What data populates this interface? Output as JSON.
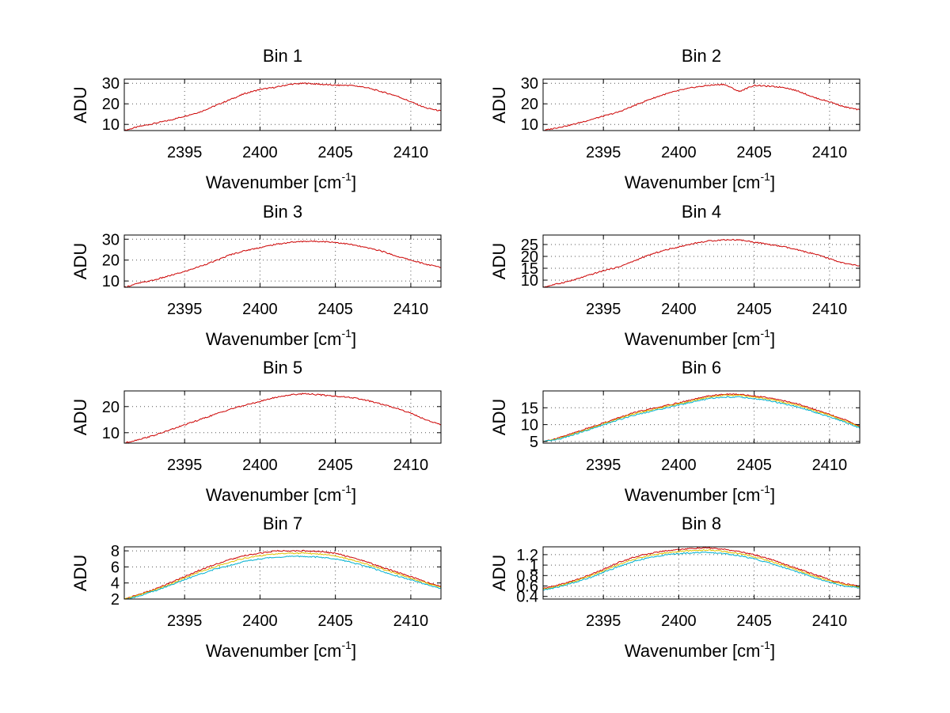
{
  "chart_data": [
    {
      "type": "line",
      "title": "Bin 1",
      "xlabel": "Wavenumber [cm",
      "xlabel_sup": "-1",
      "xlabel_close": "]",
      "ylabel": "ADU",
      "xlim": [
        2391,
        2412
      ],
      "ylim": [
        7,
        32
      ],
      "xticks": [
        2395,
        2400,
        2405,
        2410
      ],
      "yticks": [
        10,
        20,
        30
      ],
      "grid": true,
      "series": [
        {
          "name": "red",
          "color": "#cc0000",
          "x": [
            2391,
            2392,
            2393,
            2394,
            2395,
            2396,
            2397,
            2398,
            2399,
            2400,
            2401,
            2402,
            2403,
            2404,
            2405,
            2406,
            2407,
            2408,
            2409,
            2410,
            2411,
            2412
          ],
          "values": [
            7,
            9,
            10.5,
            12,
            14,
            16,
            19,
            22,
            25,
            27,
            28,
            29.5,
            30,
            29.5,
            29,
            29,
            28,
            26,
            24,
            21,
            18,
            16.5
          ]
        }
      ]
    },
    {
      "type": "line",
      "title": "Bin 2",
      "xlabel": "Wavenumber [cm",
      "xlabel_sup": "-1",
      "xlabel_close": "]",
      "ylabel": "ADU",
      "xlim": [
        2391,
        2412
      ],
      "ylim": [
        7,
        32
      ],
      "xticks": [
        2395,
        2400,
        2405,
        2410
      ],
      "yticks": [
        10,
        20,
        30
      ],
      "grid": true,
      "series": [
        {
          "name": "red",
          "color": "#cc0000",
          "x": [
            2391,
            2392,
            2393,
            2394,
            2395,
            2396,
            2397,
            2398,
            2399,
            2400,
            2401,
            2402,
            2403,
            2404,
            2405,
            2406,
            2407,
            2408,
            2409,
            2410,
            2411,
            2412
          ],
          "values": [
            7,
            8.5,
            10,
            12,
            14,
            16,
            19,
            22,
            24.5,
            26.5,
            28,
            29,
            29.5,
            26,
            29,
            28.5,
            28,
            26,
            23,
            21,
            18.5,
            17
          ]
        }
      ]
    },
    {
      "type": "line",
      "title": "Bin 3",
      "xlabel": "Wavenumber [cm",
      "xlabel_sup": "-1",
      "xlabel_close": "]",
      "ylabel": "ADU",
      "xlim": [
        2391,
        2412
      ],
      "ylim": [
        7,
        32
      ],
      "xticks": [
        2395,
        2400,
        2405,
        2410
      ],
      "yticks": [
        10,
        20,
        30
      ],
      "grid": true,
      "series": [
        {
          "name": "red",
          "color": "#cc0000",
          "x": [
            2391,
            2392,
            2393,
            2394,
            2395,
            2396,
            2397,
            2398,
            2399,
            2400,
            2401,
            2402,
            2403,
            2404,
            2405,
            2406,
            2407,
            2408,
            2409,
            2410,
            2411,
            2412
          ],
          "values": [
            7,
            9,
            10.5,
            12.5,
            14.5,
            17,
            19.5,
            22.5,
            24.5,
            26,
            27.5,
            28.5,
            29,
            29,
            28.5,
            27.5,
            26,
            24.5,
            22,
            20,
            18,
            16.5
          ]
        }
      ]
    },
    {
      "type": "line",
      "title": "Bin 4",
      "xlabel": "Wavenumber [cm",
      "xlabel_sup": "-1",
      "xlabel_close": "]",
      "ylabel": "ADU",
      "xlim": [
        2391,
        2412
      ],
      "ylim": [
        7,
        29
      ],
      "xticks": [
        2395,
        2400,
        2405,
        2410
      ],
      "yticks": [
        10,
        15,
        20,
        25
      ],
      "grid": true,
      "series": [
        {
          "name": "red",
          "color": "#cc0000",
          "x": [
            2391,
            2392,
            2393,
            2394,
            2395,
            2396,
            2397,
            2398,
            2399,
            2400,
            2401,
            2402,
            2403,
            2404,
            2405,
            2406,
            2407,
            2408,
            2409,
            2410,
            2411,
            2412
          ],
          "values": [
            7,
            8.5,
            10,
            12,
            14,
            15.5,
            18,
            20.5,
            22.5,
            24,
            25.5,
            26.5,
            27,
            27,
            26,
            25,
            24,
            22.5,
            21,
            19,
            17,
            16
          ]
        }
      ]
    },
    {
      "type": "line",
      "title": "Bin 5",
      "xlabel": "Wavenumber [cm",
      "xlabel_sup": "-1",
      "xlabel_close": "]",
      "ylabel": "ADU",
      "xlim": [
        2391,
        2412
      ],
      "ylim": [
        6,
        26
      ],
      "xticks": [
        2395,
        2400,
        2405,
        2410
      ],
      "yticks": [
        10,
        20
      ],
      "grid": true,
      "series": [
        {
          "name": "red",
          "color": "#cc0000",
          "x": [
            2391,
            2392,
            2393,
            2394,
            2395,
            2396,
            2397,
            2398,
            2399,
            2400,
            2401,
            2402,
            2403,
            2404,
            2405,
            2406,
            2407,
            2408,
            2409,
            2410,
            2411,
            2412
          ],
          "values": [
            6,
            7.5,
            9,
            11,
            13,
            15,
            17,
            19,
            20.5,
            22,
            23.5,
            24.5,
            25,
            24.5,
            24,
            23.5,
            22.5,
            21,
            19.5,
            17.5,
            15,
            13
          ]
        }
      ]
    },
    {
      "type": "line",
      "title": "Bin 6",
      "xlabel": "Wavenumber [cm",
      "xlabel_sup": "-1",
      "xlabel_close": "]",
      "ylabel": "ADU",
      "xlim": [
        2391,
        2412
      ],
      "ylim": [
        4.5,
        20
      ],
      "xticks": [
        2395,
        2400,
        2405,
        2410
      ],
      "yticks": [
        5,
        10,
        15
      ],
      "grid": true,
      "series": [
        {
          "name": "red",
          "color": "#cc0000",
          "x": [
            2391,
            2392,
            2393,
            2394,
            2395,
            2396,
            2397,
            2398,
            2399,
            2400,
            2401,
            2402,
            2403,
            2404,
            2405,
            2406,
            2407,
            2408,
            2409,
            2410,
            2411,
            2412
          ],
          "values": [
            5,
            6,
            7.5,
            9,
            10.5,
            12,
            13.5,
            14.5,
            15.5,
            16.5,
            17.5,
            18.5,
            19,
            19,
            18.5,
            18,
            17,
            16,
            14.5,
            13,
            11.5,
            9.5
          ]
        },
        {
          "name": "yellow",
          "color": "#e0c000",
          "x": [
            2391,
            2392,
            2393,
            2394,
            2395,
            2396,
            2397,
            2398,
            2399,
            2400,
            2401,
            2402,
            2403,
            2404,
            2405,
            2406,
            2407,
            2408,
            2409,
            2410,
            2411,
            2412
          ],
          "values": [
            5,
            5.8,
            7.2,
            8.7,
            10.2,
            11.7,
            13.2,
            14.2,
            15.2,
            16.2,
            17.2,
            18.2,
            18.7,
            18.7,
            18.2,
            17.6,
            16.6,
            15.6,
            14.1,
            12.7,
            11.1,
            9.3
          ]
        },
        {
          "name": "cyan",
          "color": "#00b0d0",
          "x": [
            2391,
            2392,
            2393,
            2394,
            2395,
            2396,
            2397,
            2398,
            2399,
            2400,
            2401,
            2402,
            2403,
            2404,
            2405,
            2406,
            2407,
            2408,
            2409,
            2410,
            2411,
            2412
          ],
          "values": [
            4.9,
            5.6,
            7,
            8.4,
            9.9,
            11.4,
            12.8,
            13.8,
            14.8,
            15.8,
            16.8,
            17.7,
            18.2,
            18.2,
            17.7,
            17.1,
            16.1,
            15.1,
            13.7,
            12.3,
            10.8,
            9
          ]
        }
      ]
    },
    {
      "type": "line",
      "title": "Bin 7",
      "xlabel": "Wavenumber [cm",
      "xlabel_sup": "-1",
      "xlabel_close": "]",
      "ylabel": "ADU",
      "xlim": [
        2391,
        2412
      ],
      "ylim": [
        2,
        8.5
      ],
      "xticks": [
        2395,
        2400,
        2405,
        2410
      ],
      "yticks": [
        2,
        4,
        6,
        8
      ],
      "grid": true,
      "series": [
        {
          "name": "red",
          "color": "#cc0000",
          "x": [
            2391,
            2392,
            2393,
            2394,
            2395,
            2396,
            2397,
            2398,
            2399,
            2400,
            2401,
            2402,
            2403,
            2404,
            2405,
            2406,
            2407,
            2408,
            2409,
            2410,
            2411,
            2412
          ],
          "values": [
            2,
            2.6,
            3.2,
            4,
            4.8,
            5.6,
            6.3,
            6.9,
            7.4,
            7.7,
            8,
            8,
            8,
            7.9,
            7.7,
            7.2,
            6.7,
            6,
            5.4,
            4.8,
            4.1,
            3.6
          ]
        },
        {
          "name": "yellow",
          "color": "#e0c000",
          "x": [
            2391,
            2392,
            2393,
            2394,
            2395,
            2396,
            2397,
            2398,
            2399,
            2400,
            2401,
            2402,
            2403,
            2404,
            2405,
            2406,
            2407,
            2408,
            2409,
            2410,
            2411,
            2412
          ],
          "values": [
            2,
            2.5,
            3.1,
            3.8,
            4.6,
            5.4,
            6,
            6.6,
            7.1,
            7.4,
            7.6,
            7.7,
            7.7,
            7.6,
            7.4,
            6.9,
            6.4,
            5.8,
            5.2,
            4.6,
            4,
            3.5
          ]
        },
        {
          "name": "cyan",
          "color": "#00b0d0",
          "x": [
            2391,
            2392,
            2393,
            2394,
            2395,
            2396,
            2397,
            2398,
            2399,
            2400,
            2401,
            2402,
            2403,
            2404,
            2405,
            2406,
            2407,
            2408,
            2409,
            2410,
            2411,
            2412
          ],
          "values": [
            1.9,
            2.4,
            3,
            3.7,
            4.4,
            5.1,
            5.7,
            6.2,
            6.7,
            7,
            7.2,
            7.3,
            7.3,
            7.2,
            7,
            6.6,
            6.1,
            5.5,
            4.9,
            4.4,
            3.8,
            3.3
          ]
        }
      ]
    },
    {
      "type": "line",
      "title": "Bin 8",
      "xlabel": "Wavenumber [cm",
      "xlabel_sup": "-1",
      "xlabel_close": "]",
      "ylabel": "ADU",
      "xlim": [
        2391,
        2412
      ],
      "ylim": [
        0.35,
        1.35
      ],
      "xticks": [
        2395,
        2400,
        2405,
        2410
      ],
      "yticks": [
        0.4,
        0.6,
        0.8,
        1,
        1.2
      ],
      "ytick_labels": [
        "0.4",
        "0.6",
        "0.8",
        "1",
        "1.2"
      ],
      "grid": true,
      "series": [
        {
          "name": "red",
          "color": "#cc0000",
          "x": [
            2391,
            2392,
            2393,
            2394,
            2395,
            2396,
            2397,
            2398,
            2399,
            2400,
            2401,
            2402,
            2403,
            2404,
            2405,
            2406,
            2407,
            2408,
            2409,
            2410,
            2411,
            2412
          ],
          "values": [
            0.55,
            0.62,
            0.7,
            0.8,
            0.92,
            1.05,
            1.15,
            1.22,
            1.27,
            1.3,
            1.32,
            1.33,
            1.3,
            1.26,
            1.2,
            1.12,
            1.02,
            0.92,
            0.82,
            0.72,
            0.64,
            0.6
          ]
        },
        {
          "name": "yellow",
          "color": "#e0c000",
          "x": [
            2391,
            2392,
            2393,
            2394,
            2395,
            2396,
            2397,
            2398,
            2399,
            2400,
            2401,
            2402,
            2403,
            2404,
            2405,
            2406,
            2407,
            2408,
            2409,
            2410,
            2411,
            2412
          ],
          "values": [
            0.54,
            0.6,
            0.68,
            0.78,
            0.89,
            1.01,
            1.11,
            1.18,
            1.23,
            1.26,
            1.28,
            1.29,
            1.26,
            1.22,
            1.16,
            1.08,
            0.99,
            0.89,
            0.79,
            0.7,
            0.62,
            0.58
          ]
        },
        {
          "name": "cyan",
          "color": "#00b0d0",
          "x": [
            2391,
            2392,
            2393,
            2394,
            2395,
            2396,
            2397,
            2398,
            2399,
            2400,
            2401,
            2402,
            2403,
            2404,
            2405,
            2406,
            2407,
            2408,
            2409,
            2410,
            2411,
            2412
          ],
          "values": [
            0.52,
            0.58,
            0.66,
            0.75,
            0.86,
            0.97,
            1.07,
            1.14,
            1.19,
            1.22,
            1.24,
            1.24,
            1.22,
            1.18,
            1.12,
            1.04,
            0.95,
            0.86,
            0.76,
            0.67,
            0.6,
            0.56
          ]
        }
      ]
    }
  ]
}
